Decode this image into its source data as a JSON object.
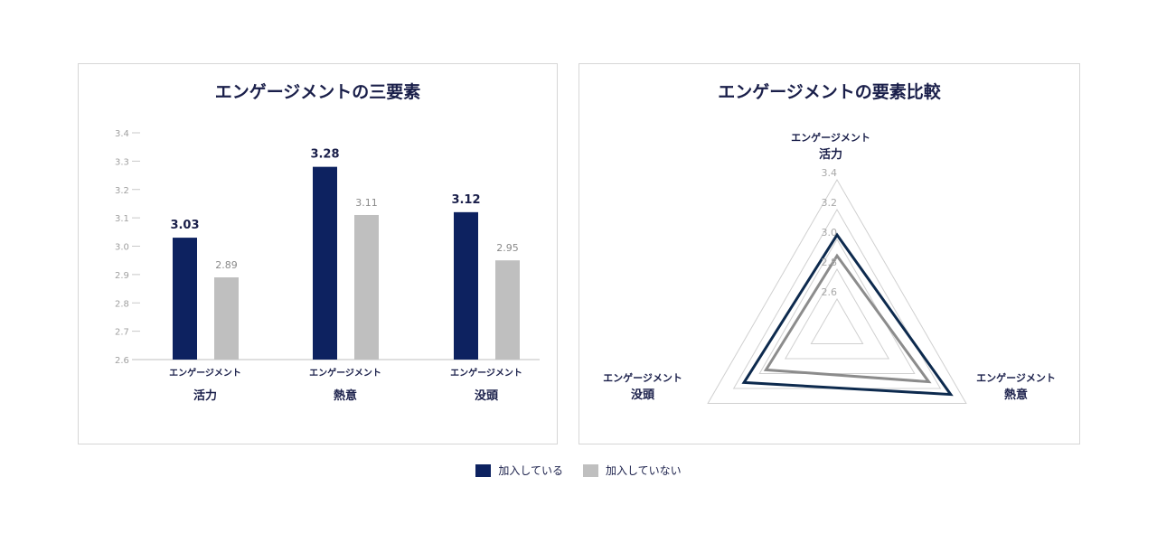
{
  "chart_data": [
    {
      "type": "bar",
      "title": "エンゲージメントの三要素",
      "categories": [
        {
          "line1": "エンゲージメント",
          "line2": "活力"
        },
        {
          "line1": "エンゲージメント",
          "line2": "熱意"
        },
        {
          "line1": "エンゲージメント",
          "line2": "没頭"
        }
      ],
      "series": [
        {
          "name": "加入している",
          "color": "#0d2260",
          "values": [
            3.03,
            3.28,
            3.12
          ],
          "labels": [
            "3.03",
            "3.28",
            "3.12"
          ]
        },
        {
          "name": "加入していない",
          "color": "#bfbfbf",
          "values": [
            2.89,
            3.11,
            2.95
          ],
          "labels": [
            "2.89",
            "3.11",
            "2.95"
          ]
        }
      ],
      "ylim": [
        2.6,
        3.4
      ],
      "yticks": [
        "2.6",
        "2.7",
        "2.8",
        "2.9",
        "3.0",
        "3.1",
        "3.2",
        "3.3",
        "3.4"
      ],
      "grid": false
    },
    {
      "type": "radar",
      "title": "エンゲージメントの要素比較",
      "axes": [
        {
          "line1": "エンゲージメント",
          "line2": "活力"
        },
        {
          "line1": "エンゲージメント",
          "line2": "熱意"
        },
        {
          "line1": "エンゲージメント",
          "line2": "没頭"
        }
      ],
      "series": [
        {
          "name": "加入している",
          "color": "#0d2a4e",
          "values": [
            3.03,
            3.28,
            3.12
          ]
        },
        {
          "name": "加入していない",
          "color": "#8c8c8c",
          "values": [
            2.89,
            3.11,
            2.95
          ]
        }
      ],
      "rticks": [
        "2.6",
        "2.8",
        "3.0",
        "3.2",
        "3.4"
      ],
      "rlim": [
        2.4,
        3.4
      ]
    }
  ],
  "legend": [
    {
      "label": "加入している",
      "color": "#0d2260"
    },
    {
      "label": "加入していない",
      "color": "#bfbfbf"
    }
  ]
}
